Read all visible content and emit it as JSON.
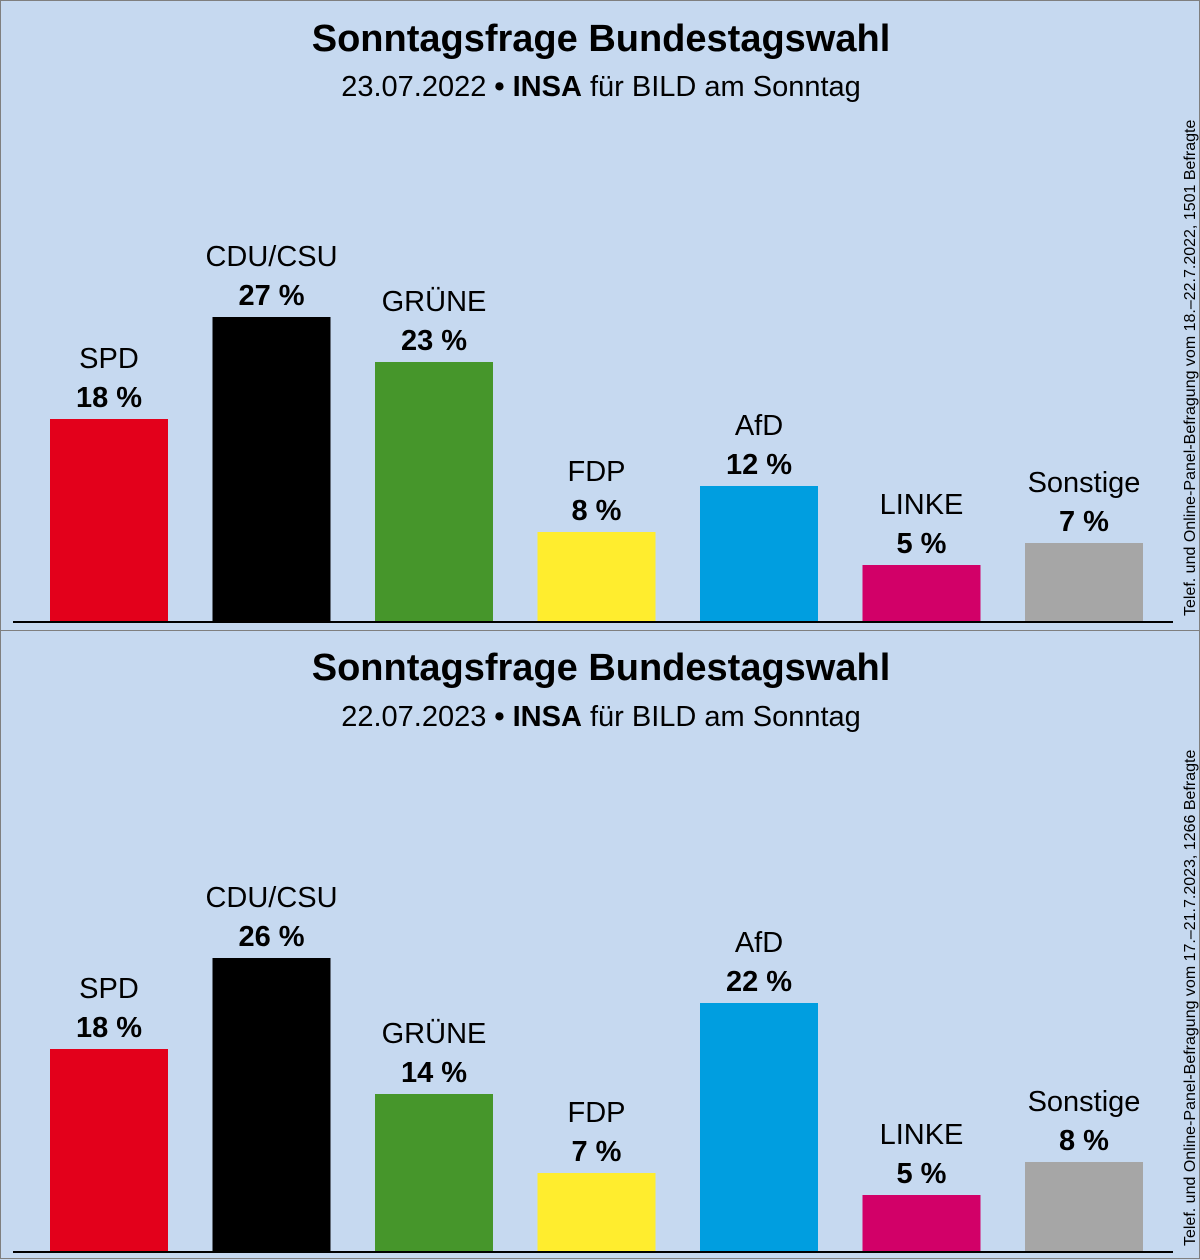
{
  "colors": {
    "background": "#c6d9f0",
    "SPD": "#e3001b",
    "CDU/CSU": "#000000",
    "GRÜNE": "#46962b",
    "FDP": "#ffed2e",
    "AfD": "#009ee0",
    "LINKE": "#d20068",
    "Sonstige": "#a6a6a6"
  },
  "chart_data": [
    {
      "type": "bar",
      "title": "Sonntagsfrage Bundestagswahl",
      "date": "23.07.2022",
      "bullet": "•",
      "institute": "INSA",
      "client": "für BILD am Sonntag",
      "side_note": "Telef. und Online-Panel-Befragung vom 18.–22.7.2022, 1501 Befragte",
      "categories": [
        "SPD",
        "CDU/CSU",
        "GRÜNE",
        "FDP",
        "AfD",
        "LINKE",
        "Sonstige"
      ],
      "values": [
        18,
        27,
        23,
        8,
        12,
        5,
        7
      ],
      "value_labels": [
        "18 %",
        "27 %",
        "23 %",
        "8 %",
        "12 %",
        "5 %",
        "7 %"
      ],
      "unit": "%",
      "ylim": [
        0,
        27
      ]
    },
    {
      "type": "bar",
      "title": "Sonntagsfrage Bundestagswahl",
      "date": "22.07.2023",
      "bullet": "•",
      "institute": "INSA",
      "client": "für BILD am Sonntag",
      "side_note": "Telef. und Online-Panel-Befragung vom 17.–21.7.2023, 1266 Befragte",
      "categories": [
        "SPD",
        "CDU/CSU",
        "GRÜNE",
        "FDP",
        "AfD",
        "LINKE",
        "Sonstige"
      ],
      "values": [
        18,
        26,
        14,
        7,
        22,
        5,
        8
      ],
      "value_labels": [
        "18 %",
        "26 %",
        "14 %",
        "7 %",
        "22 %",
        "5 %",
        "8 %"
      ],
      "unit": "%",
      "ylim": [
        0,
        26
      ]
    }
  ]
}
